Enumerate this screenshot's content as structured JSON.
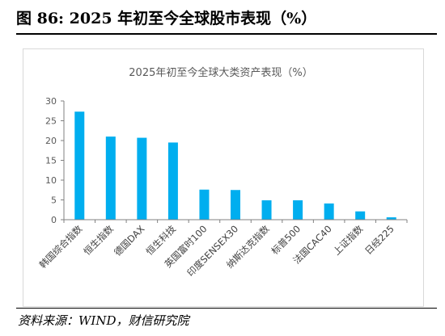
{
  "figure": {
    "title": "图 86:  2025 年初至今全球股市表现（%）",
    "source": "资料来源：WIND，财信研究院"
  },
  "colors": {
    "bar": "#00aeef",
    "axis": "#808080",
    "chart_text": "#595959"
  },
  "chart_data": {
    "type": "bar",
    "title": "2025年初至今全球大类资产表现（%）",
    "xlabel": "",
    "ylabel": "",
    "categories": [
      "韩国综合指数",
      "恒生指数",
      "德国DAX",
      "恒生科技",
      "英国富时100",
      "印度SENSEX30",
      "纳斯达克指数",
      "标普500",
      "法国CAC40",
      "上证指数",
      "日经225"
    ],
    "values": [
      27.3,
      21.0,
      20.7,
      19.5,
      7.6,
      7.5,
      4.9,
      4.9,
      4.1,
      2.1,
      0.6
    ],
    "ylim": [
      0,
      30
    ],
    "yticks": [
      0,
      5,
      10,
      15,
      20,
      25,
      30
    ],
    "grid": false,
    "legend": "none"
  }
}
